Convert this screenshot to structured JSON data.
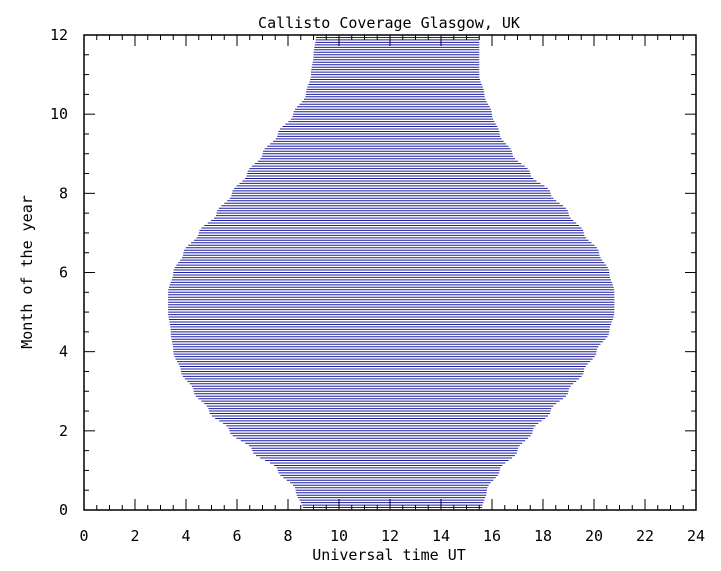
{
  "chart_data": {
    "type": "area",
    "title": "Callisto Coverage Glasgow, UK",
    "xlabel": "Universal time UT",
    "ylabel": "Month of the year",
    "xlim": [
      0,
      24
    ],
    "ylim": [
      0,
      12
    ],
    "x_ticks": [
      "0",
      "2",
      "4",
      "6",
      "8",
      "10",
      "12",
      "14",
      "16",
      "18",
      "20",
      "22",
      "24"
    ],
    "y_ticks": [
      "0",
      "2",
      "4",
      "6",
      "8",
      "10",
      "12"
    ],
    "grid": false,
    "legend": "none",
    "fill_color": "#1f1f9f",
    "series": [
      {
        "month": [
          0.0,
          0.5,
          1.0,
          1.5,
          2.0,
          2.5,
          3.0,
          3.5,
          4.0,
          4.5,
          5.0,
          5.5,
          6.0,
          6.5,
          7.0,
          7.5,
          8.0,
          8.5,
          9.0,
          9.5,
          10.0,
          10.5,
          11.0,
          11.5,
          12.0
        ],
        "start_ut": [
          8.6,
          8.3,
          7.6,
          6.6,
          5.7,
          4.9,
          4.3,
          3.8,
          3.5,
          3.4,
          3.3,
          3.3,
          3.5,
          3.9,
          4.5,
          5.2,
          5.8,
          6.4,
          7.0,
          7.6,
          8.2,
          8.7,
          8.9,
          9.0,
          9.1
        ],
        "end_ut": [
          15.6,
          15.8,
          16.3,
          17.0,
          17.6,
          18.3,
          19.0,
          19.6,
          20.1,
          20.6,
          20.8,
          20.8,
          20.6,
          20.2,
          19.6,
          19.0,
          18.3,
          17.5,
          16.8,
          16.3,
          16.0,
          15.7,
          15.5,
          15.5,
          15.5
        ]
      }
    ]
  }
}
